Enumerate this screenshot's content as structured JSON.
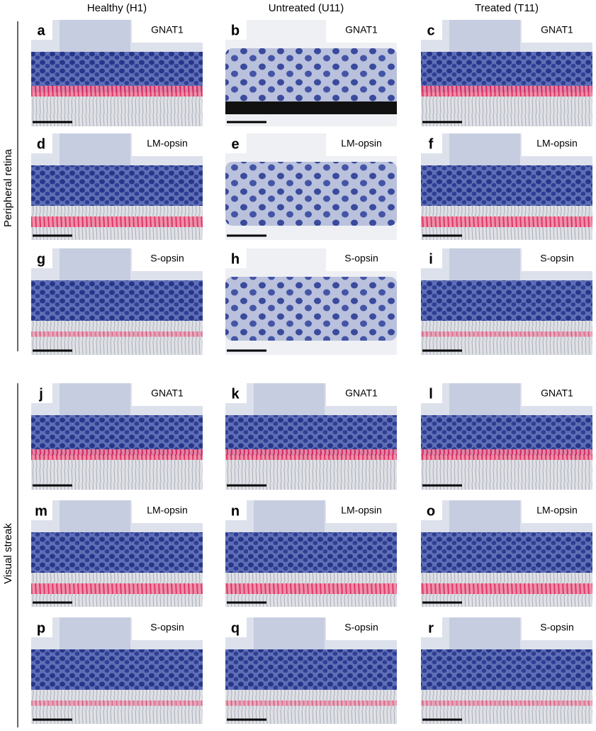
{
  "columns": [
    "Healthy (H1)",
    "Untreated (U11)",
    "Treated (T11)"
  ],
  "row_groups": [
    "Peripheral retina",
    "Visual streak"
  ],
  "panels": [
    {
      "letter": "a",
      "label": "GNAT1"
    },
    {
      "letter": "b",
      "label": "GNAT1"
    },
    {
      "letter": "c",
      "label": "GNAT1"
    },
    {
      "letter": "d",
      "label": "LM-opsin"
    },
    {
      "letter": "e",
      "label": "LM-opsin"
    },
    {
      "letter": "f",
      "label": "LM-opsin"
    },
    {
      "letter": "g",
      "label": "S-opsin"
    },
    {
      "letter": "h",
      "label": "S-opsin"
    },
    {
      "letter": "i",
      "label": "S-opsin"
    },
    {
      "letter": "j",
      "label": "GNAT1"
    },
    {
      "letter": "k",
      "label": "GNAT1"
    },
    {
      "letter": "l",
      "label": "GNAT1"
    },
    {
      "letter": "m",
      "label": "LM-opsin"
    },
    {
      "letter": "n",
      "label": "LM-opsin"
    },
    {
      "letter": "o",
      "label": "LM-opsin"
    },
    {
      "letter": "p",
      "label": "S-opsin"
    },
    {
      "letter": "q",
      "label": "S-opsin"
    },
    {
      "letter": "r",
      "label": "S-opsin"
    }
  ]
}
